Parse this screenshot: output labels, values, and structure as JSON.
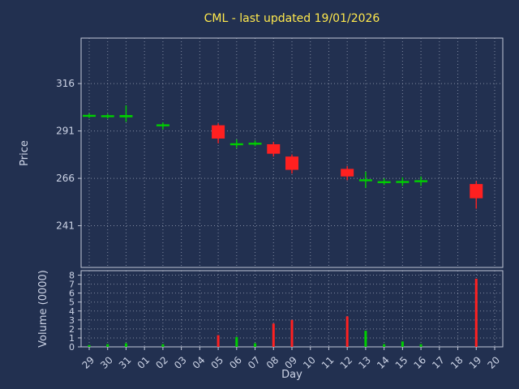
{
  "chart_data": {
    "type": "candlestick",
    "title": "CML - last updated 19/01/2026",
    "xlabel": "Day",
    "ylabel_price": "Price",
    "ylabel_volume": "Volume (0000)",
    "x_ticklabels": [
      "29",
      "30",
      "31",
      "01",
      "02",
      "03",
      "04",
      "05",
      "06",
      "07",
      "08",
      "09",
      "10",
      "11",
      "12",
      "13",
      "14",
      "15",
      "16",
      "17",
      "18",
      "19",
      "20"
    ],
    "price_ticks": [
      241,
      266,
      291,
      316
    ],
    "volume_ticks": [
      0,
      1,
      2,
      3,
      4,
      5,
      6,
      7,
      8
    ],
    "price_range": [
      219,
      340
    ],
    "volume_range": [
      0,
      8.5
    ],
    "grid": true,
    "legend": "none",
    "colors": {
      "background": "#223050",
      "up": "#00cf00",
      "down": "#ff2020",
      "title": "#ffe94d",
      "text": "#cdd4e6",
      "frame": "#c2c8d8",
      "grid": "#a9b0c4"
    },
    "candles": [
      {
        "day": "29",
        "open": 299.0,
        "high": 300.2,
        "low": 297.8,
        "close": 299.5,
        "volume": 0.2
      },
      {
        "day": "30",
        "open": 298.6,
        "high": 300.0,
        "low": 297.5,
        "close": 299.3,
        "volume": 0.3
      },
      {
        "day": "31",
        "open": 298.2,
        "high": 304.5,
        "low": 295.8,
        "close": 299.4,
        "volume": 0.4
      },
      {
        "day": "02",
        "open": 293.5,
        "high": 295.5,
        "low": 291.8,
        "close": 294.5,
        "volume": 0.3
      },
      {
        "day": "05",
        "open": 294.0,
        "high": 295.0,
        "low": 284.5,
        "close": 287.0,
        "volume": 1.3
      },
      {
        "day": "06",
        "open": 283.8,
        "high": 286.5,
        "low": 282.0,
        "close": 284.5,
        "volume": 1.1
      },
      {
        "day": "07",
        "open": 284.2,
        "high": 286.0,
        "low": 283.0,
        "close": 284.8,
        "volume": 0.4
      },
      {
        "day": "08",
        "open": 284.0,
        "high": 285.2,
        "low": 277.5,
        "close": 279.0,
        "volume": 2.6
      },
      {
        "day": "09",
        "open": 277.5,
        "high": 278.6,
        "low": 268.5,
        "close": 270.5,
        "volume": 3.0
      },
      {
        "day": "12",
        "open": 271.0,
        "high": 272.5,
        "low": 265.0,
        "close": 267.0,
        "volume": 3.4
      },
      {
        "day": "13",
        "open": 265.0,
        "high": 269.5,
        "low": 261.0,
        "close": 265.5,
        "volume": 1.8
      },
      {
        "day": "14",
        "open": 264.0,
        "high": 266.0,
        "low": 262.5,
        "close": 264.5,
        "volume": 0.3
      },
      {
        "day": "15",
        "open": 264.0,
        "high": 266.5,
        "low": 262.0,
        "close": 264.6,
        "volume": 0.6
      },
      {
        "day": "16",
        "open": 264.5,
        "high": 267.0,
        "low": 262.0,
        "close": 265.0,
        "volume": 0.3
      },
      {
        "day": "19",
        "open": 263.0,
        "high": 264.5,
        "low": 250.0,
        "close": 255.5,
        "volume": 7.6
      }
    ]
  }
}
